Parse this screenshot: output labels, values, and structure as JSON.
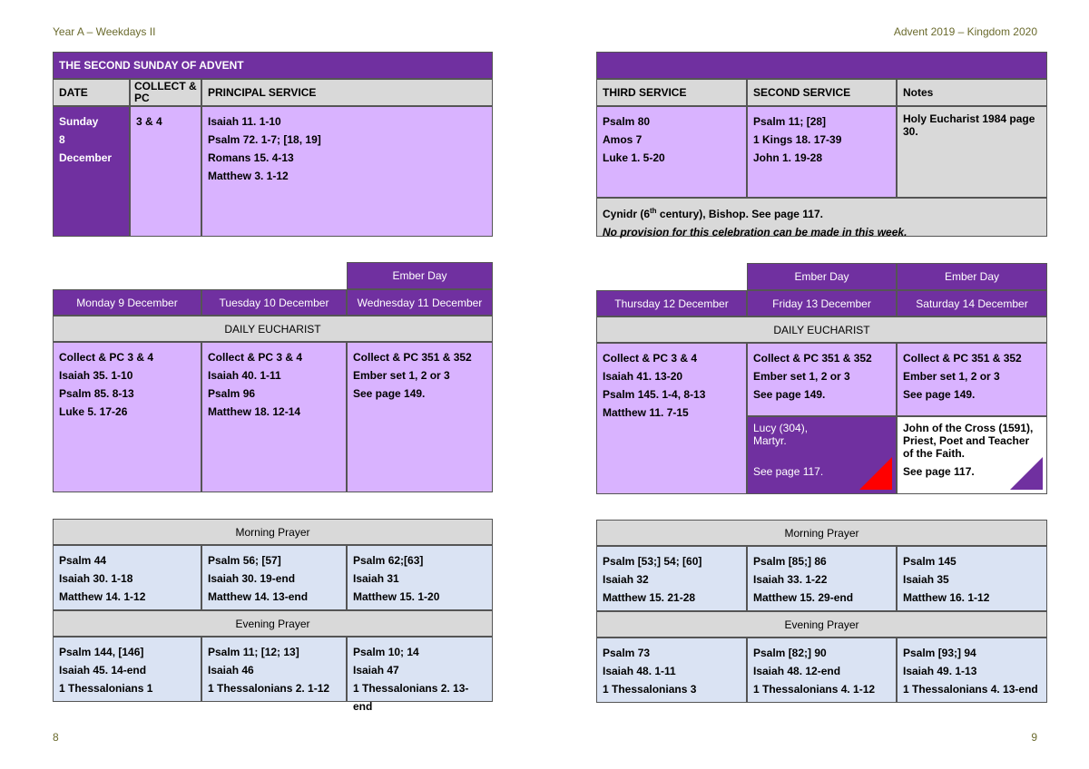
{
  "header": {
    "left": "Year A – Weekdays II",
    "right": "Advent 2019 – Kingdom 2020"
  },
  "footer": {
    "left_page": "8",
    "right_page": "9"
  },
  "sunday": {
    "title": "THE SECOND SUNDAY OF ADVENT",
    "col_date": "DATE",
    "col_collect": "COLLECT & PC",
    "col_principal": "PRINCIPAL SERVICE",
    "col_third": "THIRD SERVICE",
    "col_second": "SECOND SERVICE",
    "col_notes": "Notes",
    "date_lines": [
      "Sunday",
      "8",
      "December"
    ],
    "collect": "3 & 4",
    "principal": [
      "Isaiah 11. 1-10",
      "Psalm 72. 1-7; [18, 19]",
      "Romans 15. 4-13",
      "Matthew 3. 1-12"
    ],
    "third": [
      "Psalm 80",
      "Amos 7",
      "Luke 1. 5-20"
    ],
    "second": [
      "Psalm 11; [28]",
      "1 Kings 18. 17-39",
      "John 1. 19-28"
    ],
    "notes": "Holy Eucharist 1984 page 30.",
    "commem_line1_a": "Cynidr (6",
    "commem_line1_sup": "th",
    "commem_line1_b": " century), Bishop. See page 117.",
    "commem_line2": "No provision for this celebration can be made in this week."
  },
  "weekdays": {
    "ember_label": "Ember Day",
    "daily_eucharist": "DAILY EUCHARIST",
    "morning_prayer": "Morning Prayer",
    "evening_prayer": "Evening Prayer",
    "days": [
      {
        "name": "Monday 9 December",
        "eucharist": [
          "Collect & PC 3 & 4",
          "Isaiah 35. 1-10",
          "Psalm 85. 8-13",
          "Luke 5. 17-26"
        ],
        "morning": [
          "Psalm 44",
          "Isaiah 30. 1-18",
          "Matthew 14. 1-12"
        ],
        "evening": [
          "Psalm 144, [146]",
          "Isaiah 45. 14-end",
          "1 Thessalonians 1"
        ]
      },
      {
        "name": "Tuesday 10 December",
        "eucharist": [
          "Collect & PC 3 & 4",
          "Isaiah 40. 1-11",
          "Psalm 96",
          "Matthew 18. 12-14"
        ],
        "morning": [
          "Psalm 56; [57]",
          "Isaiah 30. 19-end",
          "Matthew 14. 13-end"
        ],
        "evening": [
          "Psalm 11; [12; 13]",
          "Isaiah 46",
          "1 Thessalonians 2. 1-12"
        ]
      },
      {
        "name": "Wednesday 11 December",
        "eucharist": [
          "Collect & PC 351 & 352",
          "Ember set 1, 2 or 3",
          "See page 149."
        ],
        "morning": [
          "Psalm 62;[63]",
          "Isaiah 31",
          "Matthew 15. 1-20"
        ],
        "evening": [
          "Psalm 10; 14",
          "Isaiah 47",
          "1 Thessalonians 2. 13-end"
        ]
      },
      {
        "name": "Thursday 12 December",
        "eucharist": [
          "Collect & PC 3 & 4",
          "Isaiah 41. 13-20",
          "Psalm 145. 1-4, 8-13",
          "Matthew 11. 7-15"
        ],
        "morning": [
          "Psalm [53;] 54; [60]",
          "Isaiah 32",
          "Matthew 15. 21-28"
        ],
        "evening": [
          "Psalm 73",
          "Isaiah 48. 1-11",
          "1 Thessalonians 3"
        ]
      },
      {
        "name": "Friday 13 December",
        "eucharist": [
          "Collect & PC 351 & 352",
          "Ember set 1, 2 or 3",
          "See page 149."
        ],
        "morning": [
          "Psalm [85;] 86",
          "Isaiah 33. 1-22",
          "Matthew 15. 29-end"
        ],
        "evening": [
          "Psalm [82;] 90",
          "Isaiah 48. 12-end",
          "1 Thessalonians 4. 1-12"
        ]
      },
      {
        "name": "Saturday 14 December",
        "eucharist": [
          "Collect & PC 351 & 352",
          "Ember set 1, 2 or 3",
          "See page 149."
        ],
        "morning": [
          "Psalm 145",
          "Isaiah 35",
          "Matthew 16. 1-12"
        ],
        "evening": [
          "Psalm [93;] 94",
          "Isaiah 49. 1-13",
          "1 Thessalonians 4. 13-end"
        ]
      }
    ],
    "friday_commem": {
      "lines": [
        "Lucy (304),",
        "Martyr."
      ],
      "see": "See page 117."
    },
    "saturday_commem": {
      "lines": [
        "John of the Cross (1591),",
        "Priest, Poet and Teacher",
        "of the Faith."
      ],
      "see": "See page 117."
    }
  },
  "colors": {
    "purple": "#7030a0",
    "lavender": "#d9b3ff",
    "gray": "#d9d9d9",
    "blue": "#dae3f3",
    "red_triangle": "#ff0000"
  }
}
